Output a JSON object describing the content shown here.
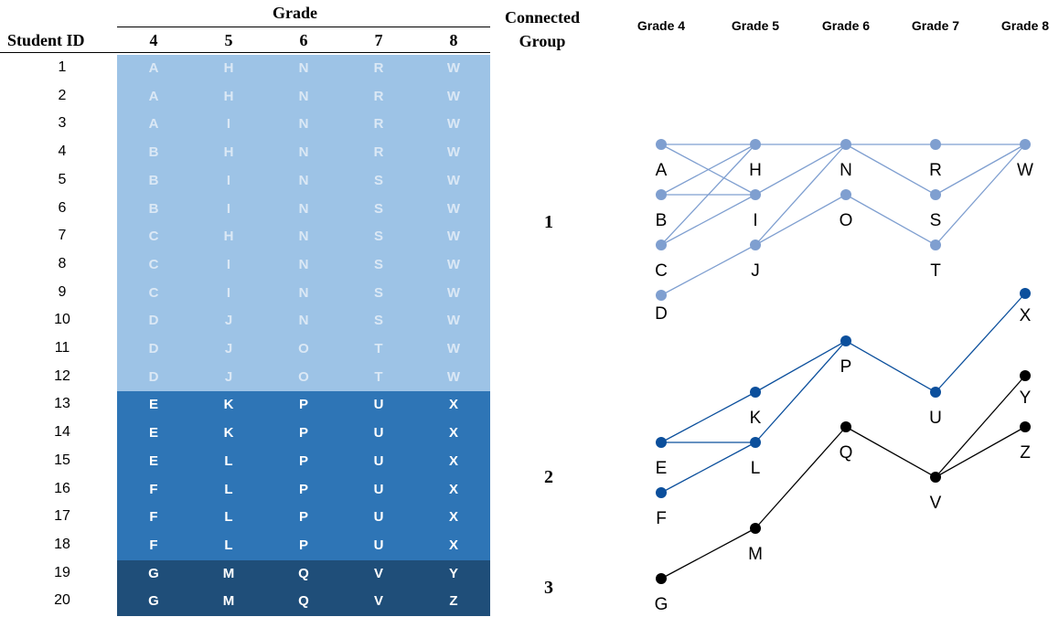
{
  "table": {
    "grade_title": "Grade",
    "student_id_header": "Student ID",
    "connected_group_header_line1": "Connected",
    "connected_group_header_line2": "Group",
    "grades": [
      "4",
      "5",
      "6",
      "7",
      "8"
    ],
    "rows": [
      {
        "id": "1",
        "values": [
          "A",
          "H",
          "N",
          "R",
          "W"
        ],
        "group": 1
      },
      {
        "id": "2",
        "values": [
          "A",
          "H",
          "N",
          "R",
          "W"
        ],
        "group": 1
      },
      {
        "id": "3",
        "values": [
          "A",
          "I",
          "N",
          "R",
          "W"
        ],
        "group": 1
      },
      {
        "id": "4",
        "values": [
          "B",
          "H",
          "N",
          "R",
          "W"
        ],
        "group": 1
      },
      {
        "id": "5",
        "values": [
          "B",
          "I",
          "N",
          "S",
          "W"
        ],
        "group": 1
      },
      {
        "id": "6",
        "values": [
          "B",
          "I",
          "N",
          "S",
          "W"
        ],
        "group": 1
      },
      {
        "id": "7",
        "values": [
          "C",
          "H",
          "N",
          "S",
          "W"
        ],
        "group": 1
      },
      {
        "id": "8",
        "values": [
          "C",
          "I",
          "N",
          "S",
          "W"
        ],
        "group": 1
      },
      {
        "id": "9",
        "values": [
          "C",
          "I",
          "N",
          "S",
          "W"
        ],
        "group": 1
      },
      {
        "id": "10",
        "values": [
          "D",
          "J",
          "N",
          "S",
          "W"
        ],
        "group": 1
      },
      {
        "id": "11",
        "values": [
          "D",
          "J",
          "O",
          "T",
          "W"
        ],
        "group": 1
      },
      {
        "id": "12",
        "values": [
          "D",
          "J",
          "O",
          "T",
          "W"
        ],
        "group": 1
      },
      {
        "id": "13",
        "values": [
          "E",
          "K",
          "P",
          "U",
          "X"
        ],
        "group": 2
      },
      {
        "id": "14",
        "values": [
          "E",
          "K",
          "P",
          "U",
          "X"
        ],
        "group": 2
      },
      {
        "id": "15",
        "values": [
          "E",
          "L",
          "P",
          "U",
          "X"
        ],
        "group": 2
      },
      {
        "id": "16",
        "values": [
          "F",
          "L",
          "P",
          "U",
          "X"
        ],
        "group": 2
      },
      {
        "id": "17",
        "values": [
          "F",
          "L",
          "P",
          "U",
          "X"
        ],
        "group": 2
      },
      {
        "id": "18",
        "values": [
          "F",
          "L",
          "P",
          "U",
          "X"
        ],
        "group": 2
      },
      {
        "id": "19",
        "values": [
          "G",
          "M",
          "Q",
          "V",
          "Y"
        ],
        "group": 3
      },
      {
        "id": "20",
        "values": [
          "G",
          "M",
          "Q",
          "V",
          "Z"
        ],
        "group": 3
      }
    ],
    "group_labels": [
      "1",
      "2",
      "3"
    ],
    "group_colors": [
      "#9dc3e6",
      "#2e75b6",
      "#1f4e79"
    ],
    "group_text_colors": [
      "#dbe8f5",
      "#ffffff",
      "#ffffff"
    ]
  },
  "diagram": {
    "grade_headers": [
      "Grade 4",
      "Grade 5",
      "Grade 6",
      "Grade 7",
      "Grade 8"
    ],
    "nodes": [
      {
        "label": "A",
        "grade": 0,
        "group": 1
      },
      {
        "label": "B",
        "grade": 0,
        "group": 1
      },
      {
        "label": "C",
        "grade": 0,
        "group": 1
      },
      {
        "label": "D",
        "grade": 0,
        "group": 1
      },
      {
        "label": "H",
        "grade": 1,
        "group": 1
      },
      {
        "label": "I",
        "grade": 1,
        "group": 1
      },
      {
        "label": "J",
        "grade": 1,
        "group": 1
      },
      {
        "label": "N",
        "grade": 2,
        "group": 1
      },
      {
        "label": "O",
        "grade": 2,
        "group": 1
      },
      {
        "label": "R",
        "grade": 3,
        "group": 1
      },
      {
        "label": "S",
        "grade": 3,
        "group": 1
      },
      {
        "label": "T",
        "grade": 3,
        "group": 1
      },
      {
        "label": "W",
        "grade": 4,
        "group": 1
      },
      {
        "label": "E",
        "grade": 0,
        "group": 2
      },
      {
        "label": "F",
        "grade": 0,
        "group": 2
      },
      {
        "label": "K",
        "grade": 1,
        "group": 2
      },
      {
        "label": "L",
        "grade": 1,
        "group": 2
      },
      {
        "label": "P",
        "grade": 2,
        "group": 2
      },
      {
        "label": "U",
        "grade": 3,
        "group": 2
      },
      {
        "label": "X",
        "grade": 4,
        "group": 2
      },
      {
        "label": "G",
        "grade": 0,
        "group": 3
      },
      {
        "label": "M",
        "grade": 1,
        "group": 3
      },
      {
        "label": "Q",
        "grade": 2,
        "group": 3
      },
      {
        "label": "V",
        "grade": 3,
        "group": 3
      },
      {
        "label": "Y",
        "grade": 4,
        "group": 3
      },
      {
        "label": "Z",
        "grade": 4,
        "group": 3
      }
    ],
    "edges": [
      [
        "A",
        "H"
      ],
      [
        "A",
        "I"
      ],
      [
        "B",
        "H"
      ],
      [
        "B",
        "I"
      ],
      [
        "C",
        "H"
      ],
      [
        "C",
        "I"
      ],
      [
        "D",
        "J"
      ],
      [
        "H",
        "N"
      ],
      [
        "I",
        "N"
      ],
      [
        "J",
        "N"
      ],
      [
        "J",
        "O"
      ],
      [
        "N",
        "R"
      ],
      [
        "N",
        "S"
      ],
      [
        "O",
        "T"
      ],
      [
        "R",
        "W"
      ],
      [
        "S",
        "W"
      ],
      [
        "T",
        "W"
      ],
      [
        "E",
        "K"
      ],
      [
        "E",
        "L"
      ],
      [
        "F",
        "L"
      ],
      [
        "K",
        "P"
      ],
      [
        "L",
        "P"
      ],
      [
        "P",
        "U"
      ],
      [
        "U",
        "X"
      ],
      [
        "G",
        "M"
      ],
      [
        "M",
        "Q"
      ],
      [
        "Q",
        "V"
      ],
      [
        "V",
        "Y"
      ],
      [
        "V",
        "Z"
      ]
    ],
    "group_colors": {
      "1": "#7f9fd0",
      "2": "#0b4f9c",
      "3": "#000000"
    }
  }
}
